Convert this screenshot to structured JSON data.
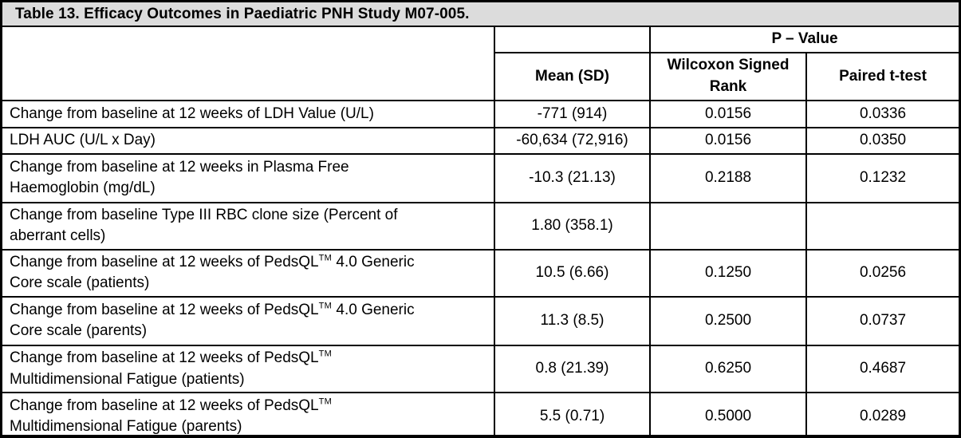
{
  "title": "Table 13. Efficacy Outcomes in Paediatric PNH Study M07-005.",
  "colors": {
    "title_bar_bg": "#dcdcdc",
    "border": "#000000",
    "text": "#000000",
    "background": "#ffffff"
  },
  "table": {
    "header": {
      "p_value_label": "P – Value",
      "mean_sd_label": "Mean (SD)",
      "wilcoxon_label": "Wilcoxon Signed Rank",
      "paired_ttest_label": "Paired t-test"
    },
    "rows": [
      {
        "label": "Change from baseline at 12 weeks of LDH Value (U/L)",
        "mean_sd": "-771 (914)",
        "wilcoxon": "0.0156",
        "paired_ttest": "0.0336"
      },
      {
        "label": "LDH AUC (U/L x Day)",
        "mean_sd": "-60,634 (72,916)",
        "wilcoxon": "0.0156",
        "paired_ttest": "0.0350"
      },
      {
        "label": "Change from baseline at 12 weeks in Plasma Free\nHaemoglobin (mg/dL)",
        "mean_sd": "-10.3 (21.13)",
        "wilcoxon": "0.2188",
        "paired_ttest": "0.1232"
      },
      {
        "label": "Change from baseline Type III RBC clone size (Percent of\naberrant cells)",
        "mean_sd": "1.80 (358.1)",
        "wilcoxon": "",
        "paired_ttest": ""
      },
      {
        "label": "Change from baseline at 12 weeks of PedsQL™ 4.0 Generic\nCore scale (patients)",
        "mean_sd": "10.5 (6.66)",
        "wilcoxon": "0.1250",
        "paired_ttest": "0.0256"
      },
      {
        "label": "Change from baseline at 12 weeks of PedsQL™ 4.0 Generic\nCore scale (parents)",
        "mean_sd": "11.3 (8.5)",
        "wilcoxon": "0.2500",
        "paired_ttest": "0.0737"
      },
      {
        "label": "Change from baseline at 12 weeks of PedsQL™\nMultidimensional Fatigue (patients)",
        "mean_sd": "0.8 (21.39)",
        "wilcoxon": "0.6250",
        "paired_ttest": "0.4687"
      },
      {
        "label": "Change from baseline at 12 weeks of PedsQL™\nMultidimensional Fatigue (parents)",
        "mean_sd": "5.5 (0.71)",
        "wilcoxon": "0.5000",
        "paired_ttest": "0.0289"
      }
    ]
  }
}
